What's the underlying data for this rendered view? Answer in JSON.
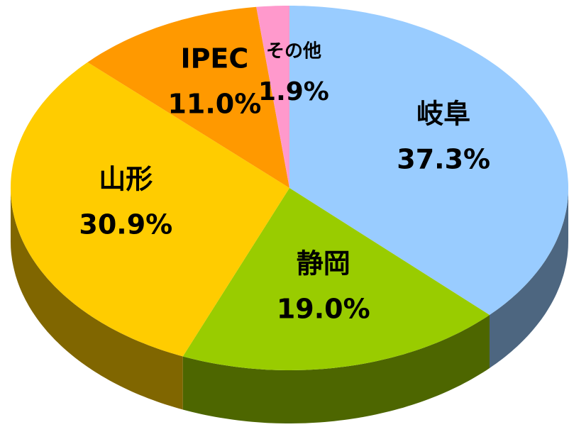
{
  "chart_data": {
    "type": "pie3d",
    "categories": [
      "岐阜",
      "静岡",
      "山形",
      "IPEC",
      "その他"
    ],
    "values": [
      37.3,
      19.0,
      30.9,
      11.0,
      1.9
    ],
    "value_labels": [
      "37.3%",
      "19.0%",
      "30.9%",
      "11.0%",
      "1.9%"
    ],
    "colors": [
      "#99ccff",
      "#99cc00",
      "#ffcc00",
      "#ff9900",
      "#ff99cc"
    ],
    "side_colors": [
      "#4d6680",
      "#4d6600",
      "#806600",
      "#804d00",
      "#804d66"
    ]
  }
}
